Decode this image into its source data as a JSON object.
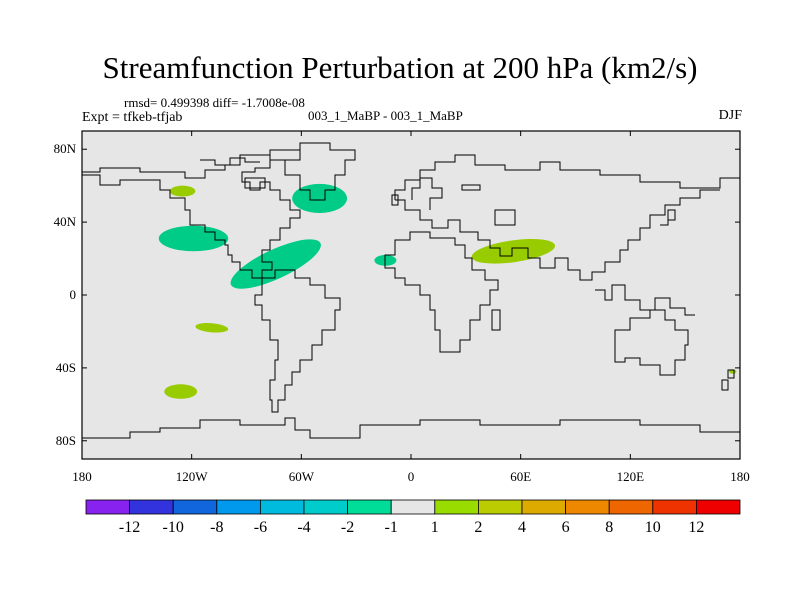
{
  "title": "Streamfunction Perturbation at 200 hPa (km2/s)",
  "stats_line": "rmsd= 0.499398 diff= -1.7008e-08",
  "experiment": "Expt = tfkeb-tfjab",
  "case_label": "003_1_MaBP - 003_1_MaBP",
  "season": "DJF",
  "chart_data": {
    "type": "map",
    "projection": "cylindrical-equidistant",
    "xlim": [
      -180,
      180
    ],
    "ylim": [
      -90,
      90
    ],
    "x_ticks": [
      {
        "value": -180,
        "label": "180"
      },
      {
        "value": -120,
        "label": "120W"
      },
      {
        "value": -60,
        "label": "60W"
      },
      {
        "value": 0,
        "label": "0"
      },
      {
        "value": 60,
        "label": "60E"
      },
      {
        "value": 120,
        "label": "120E"
      },
      {
        "value": 180,
        "label": "180"
      }
    ],
    "y_ticks": [
      {
        "value": 80,
        "label": "80N"
      },
      {
        "value": 40,
        "label": "40N"
      },
      {
        "value": 0,
        "label": "0"
      },
      {
        "value": -40,
        "label": "40S"
      },
      {
        "value": -80,
        "label": "80S"
      }
    ],
    "background_color": "#e6e6e6",
    "anomalies": [
      {
        "lon": -125,
        "lat": 57,
        "rx": 7,
        "ry": 3,
        "value": 1.5,
        "color": "#99cc00"
      },
      {
        "lon": -50,
        "lat": 53,
        "rx": 15,
        "ry": 8,
        "value": -1.5,
        "color": "#00cc88"
      },
      {
        "lon": -119,
        "lat": 31,
        "rx": 19,
        "ry": 7,
        "value": -1.5,
        "color": "#00cc88"
      },
      {
        "lon": -74,
        "lat": 17,
        "rx": 27,
        "ry": 8,
        "value": -1.5,
        "color": "#00cc88",
        "rotate": -25
      },
      {
        "lon": -14,
        "lat": 19,
        "rx": 6,
        "ry": 3,
        "value": -1.5,
        "color": "#00cc88"
      },
      {
        "lon": 56,
        "lat": 24,
        "rx": 23,
        "ry": 6,
        "value": 1.5,
        "color": "#99cc00",
        "rotate": -8
      },
      {
        "lon": -109,
        "lat": -18,
        "rx": 9,
        "ry": 2.5,
        "value": 1.5,
        "color": "#99cc00",
        "rotate": 5
      },
      {
        "lon": -126,
        "lat": -53,
        "rx": 9,
        "ry": 4,
        "value": 1.5,
        "color": "#99cc00"
      },
      {
        "lon": 176,
        "lat": -42,
        "rx": 2,
        "ry": 1.2,
        "value": 1.5,
        "color": "#99cc00"
      }
    ],
    "colorbar": {
      "colors": [
        "#8822ee",
        "#3333dd",
        "#1166dd",
        "#0099ee",
        "#00bbdd",
        "#00cccc",
        "#00dd99",
        "#e6e6e6",
        "#99dd00",
        "#bbcc00",
        "#ddaa00",
        "#ee8800",
        "#ee6600",
        "#ee3300",
        "#ee0000"
      ],
      "labels": [
        "-12",
        "-10",
        "-8",
        "-6",
        "-4",
        "-2",
        "-1",
        "1",
        "2",
        "4",
        "6",
        "8",
        "10",
        "12"
      ]
    }
  }
}
